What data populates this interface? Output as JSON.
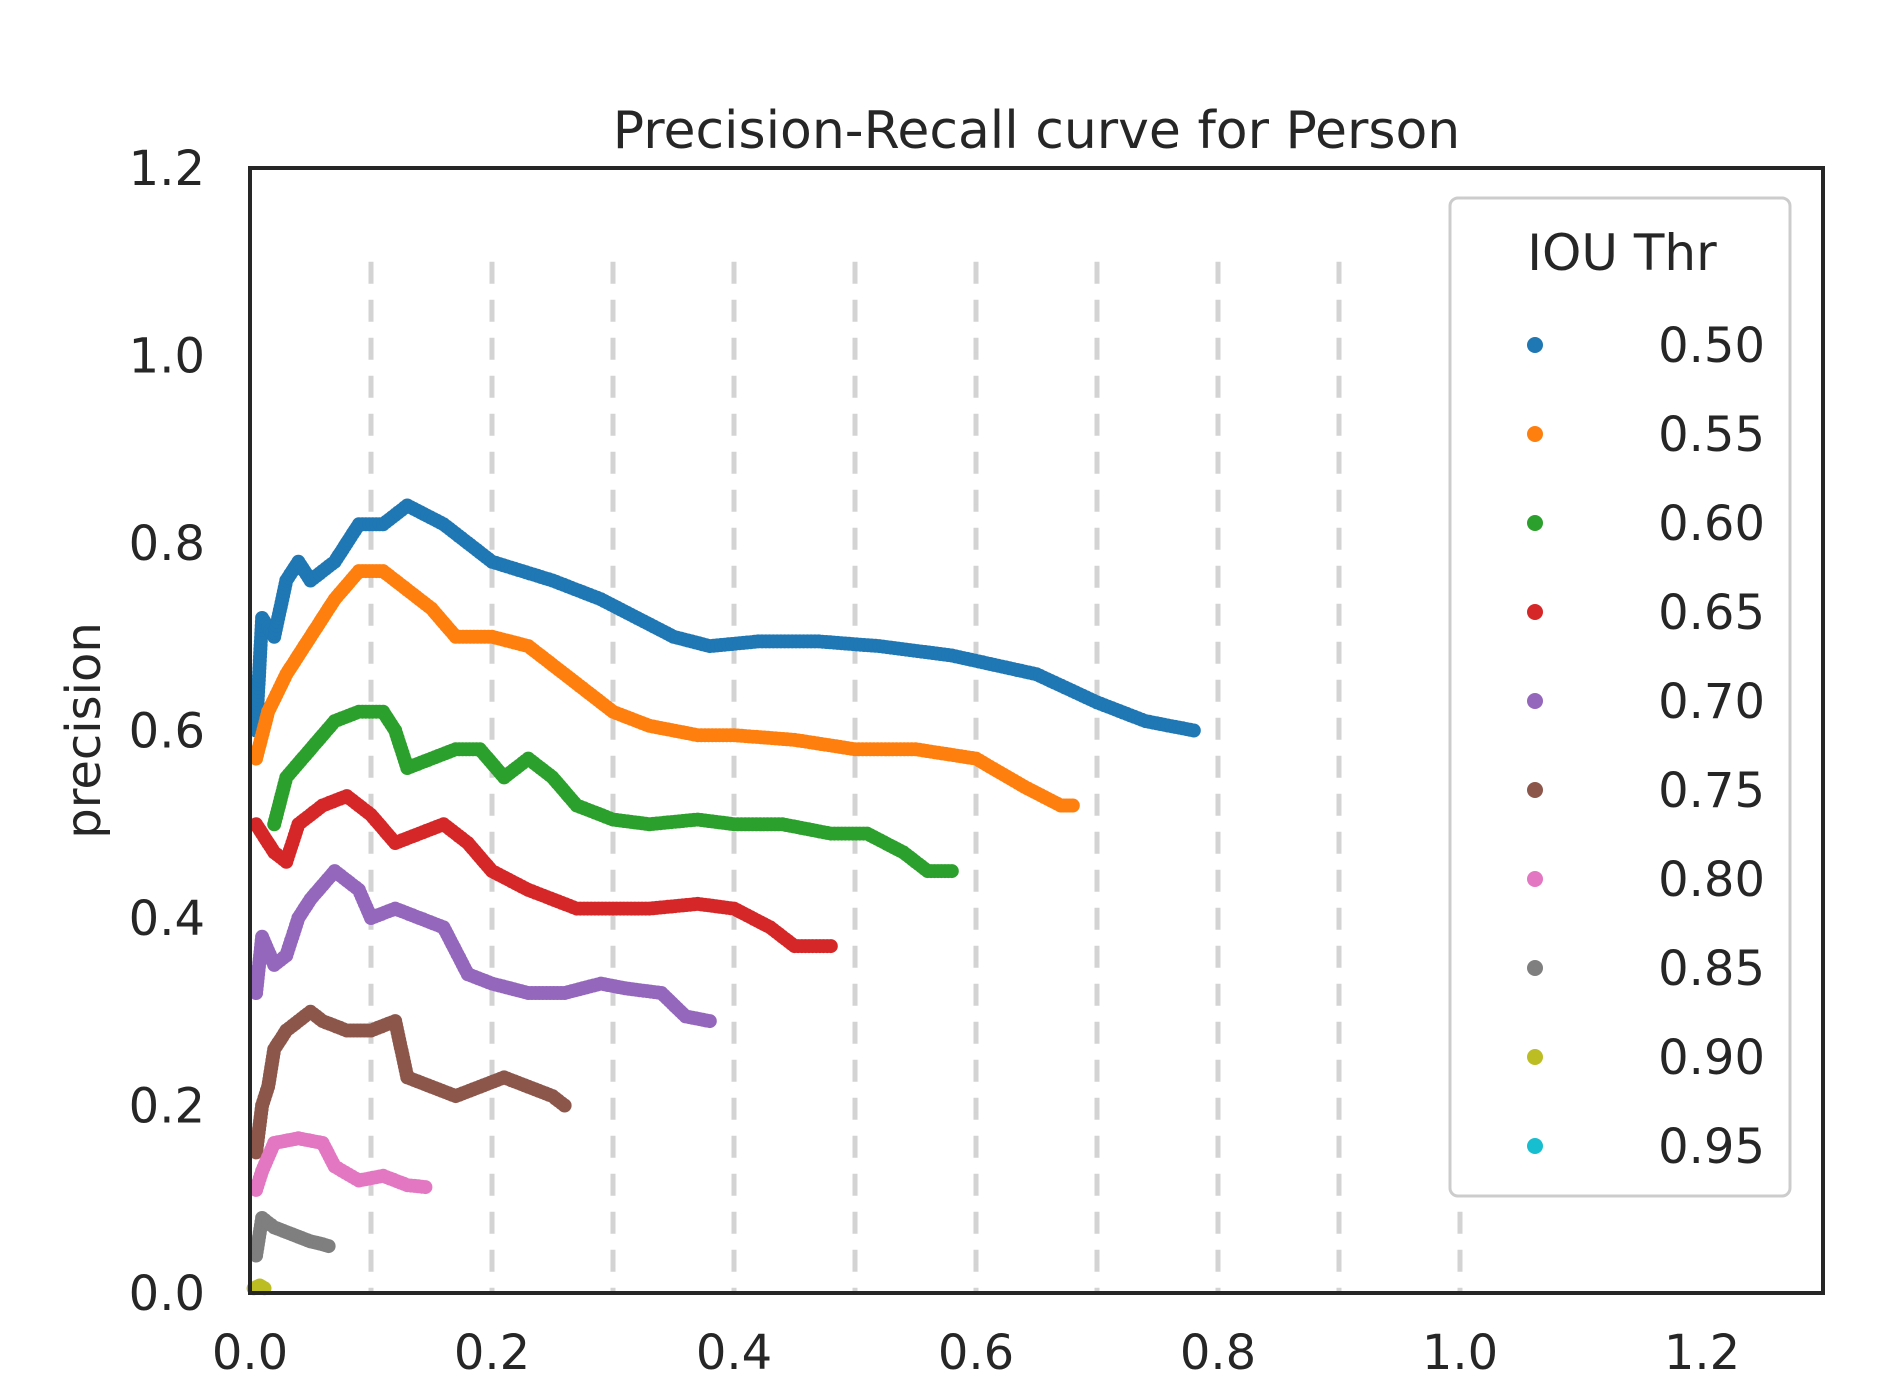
{
  "chart_data": {
    "type": "scatter",
    "title": "Precision-Recall curve for Person",
    "xlabel": "",
    "ylabel": "precision",
    "xlim": [
      0.0,
      1.3
    ],
    "ylim": [
      0.0,
      1.2
    ],
    "x_ticks": [
      0.0,
      0.2,
      0.4,
      0.6,
      0.8,
      1.0,
      1.2
    ],
    "x_tick_labels": [
      "0.0",
      "0.2",
      "0.4",
      "0.6",
      "0.8",
      "1.0",
      "1.2"
    ],
    "y_ticks": [
      0.0,
      0.2,
      0.4,
      0.6,
      0.8,
      1.0,
      1.2
    ],
    "y_tick_labels": [
      "0.0",
      "0.2",
      "0.4",
      "0.6",
      "0.8",
      "1.0",
      "1.2"
    ],
    "vertical_grid_x": [
      0.1,
      0.2,
      0.3,
      0.4,
      0.5,
      0.6,
      0.7,
      0.8,
      0.9,
      1.0
    ],
    "vertical_grid_ylim": [
      0.0,
      1.1
    ],
    "legend": {
      "title": "IOU Thr",
      "position": "upper right"
    },
    "series": [
      {
        "name": "0.50",
        "color": "#1f77b4",
        "points": [
          [
            0.005,
            0.6
          ],
          [
            0.01,
            0.72
          ],
          [
            0.02,
            0.7
          ],
          [
            0.03,
            0.76
          ],
          [
            0.04,
            0.78
          ],
          [
            0.05,
            0.76
          ],
          [
            0.07,
            0.78
          ],
          [
            0.09,
            0.82
          ],
          [
            0.11,
            0.82
          ],
          [
            0.13,
            0.84
          ],
          [
            0.16,
            0.82
          ],
          [
            0.2,
            0.78
          ],
          [
            0.25,
            0.76
          ],
          [
            0.29,
            0.74
          ],
          [
            0.32,
            0.72
          ],
          [
            0.35,
            0.7
          ],
          [
            0.38,
            0.69
          ],
          [
            0.42,
            0.695
          ],
          [
            0.47,
            0.695
          ],
          [
            0.52,
            0.69
          ],
          [
            0.58,
            0.68
          ],
          [
            0.65,
            0.66
          ],
          [
            0.7,
            0.63
          ],
          [
            0.74,
            0.61
          ],
          [
            0.78,
            0.6
          ]
        ]
      },
      {
        "name": "0.55",
        "color": "#ff7f0e",
        "points": [
          [
            0.005,
            0.57
          ],
          [
            0.015,
            0.62
          ],
          [
            0.03,
            0.66
          ],
          [
            0.05,
            0.7
          ],
          [
            0.07,
            0.74
          ],
          [
            0.09,
            0.77
          ],
          [
            0.11,
            0.77
          ],
          [
            0.13,
            0.75
          ],
          [
            0.15,
            0.73
          ],
          [
            0.17,
            0.7
          ],
          [
            0.2,
            0.7
          ],
          [
            0.23,
            0.69
          ],
          [
            0.27,
            0.65
          ],
          [
            0.3,
            0.62
          ],
          [
            0.33,
            0.605
          ],
          [
            0.37,
            0.595
          ],
          [
            0.4,
            0.595
          ],
          [
            0.45,
            0.59
          ],
          [
            0.5,
            0.58
          ],
          [
            0.55,
            0.58
          ],
          [
            0.6,
            0.57
          ],
          [
            0.64,
            0.54
          ],
          [
            0.67,
            0.52
          ],
          [
            0.68,
            0.52
          ]
        ]
      },
      {
        "name": "0.60",
        "color": "#2ca02c",
        "points": [
          [
            0.02,
            0.5
          ],
          [
            0.03,
            0.55
          ],
          [
            0.05,
            0.58
          ],
          [
            0.07,
            0.61
          ],
          [
            0.09,
            0.62
          ],
          [
            0.11,
            0.62
          ],
          [
            0.12,
            0.6
          ],
          [
            0.13,
            0.56
          ],
          [
            0.15,
            0.57
          ],
          [
            0.17,
            0.58
          ],
          [
            0.19,
            0.58
          ],
          [
            0.21,
            0.55
          ],
          [
            0.23,
            0.57
          ],
          [
            0.25,
            0.55
          ],
          [
            0.27,
            0.52
          ],
          [
            0.3,
            0.505
          ],
          [
            0.33,
            0.5
          ],
          [
            0.37,
            0.505
          ],
          [
            0.4,
            0.5
          ],
          [
            0.44,
            0.5
          ],
          [
            0.48,
            0.49
          ],
          [
            0.51,
            0.49
          ],
          [
            0.54,
            0.47
          ],
          [
            0.56,
            0.45
          ],
          [
            0.58,
            0.45
          ]
        ]
      },
      {
        "name": "0.65",
        "color": "#d62728",
        "points": [
          [
            0.005,
            0.5
          ],
          [
            0.02,
            0.47
          ],
          [
            0.03,
            0.46
          ],
          [
            0.04,
            0.5
          ],
          [
            0.06,
            0.52
          ],
          [
            0.08,
            0.53
          ],
          [
            0.1,
            0.51
          ],
          [
            0.12,
            0.48
          ],
          [
            0.14,
            0.49
          ],
          [
            0.16,
            0.5
          ],
          [
            0.18,
            0.48
          ],
          [
            0.2,
            0.45
          ],
          [
            0.23,
            0.43
          ],
          [
            0.27,
            0.41
          ],
          [
            0.3,
            0.41
          ],
          [
            0.33,
            0.41
          ],
          [
            0.37,
            0.415
          ],
          [
            0.4,
            0.41
          ],
          [
            0.43,
            0.39
          ],
          [
            0.45,
            0.37
          ],
          [
            0.48,
            0.37
          ]
        ]
      },
      {
        "name": "0.70",
        "color": "#9467bd",
        "points": [
          [
            0.005,
            0.32
          ],
          [
            0.01,
            0.38
          ],
          [
            0.02,
            0.35
          ],
          [
            0.03,
            0.36
          ],
          [
            0.04,
            0.4
          ],
          [
            0.05,
            0.42
          ],
          [
            0.07,
            0.45
          ],
          [
            0.09,
            0.43
          ],
          [
            0.1,
            0.4
          ],
          [
            0.12,
            0.41
          ],
          [
            0.14,
            0.4
          ],
          [
            0.16,
            0.39
          ],
          [
            0.18,
            0.34
          ],
          [
            0.2,
            0.33
          ],
          [
            0.23,
            0.32
          ],
          [
            0.26,
            0.32
          ],
          [
            0.29,
            0.33
          ],
          [
            0.31,
            0.325
          ],
          [
            0.34,
            0.32
          ],
          [
            0.36,
            0.295
          ],
          [
            0.38,
            0.29
          ]
        ]
      },
      {
        "name": "0.75",
        "color": "#8c564b",
        "points": [
          [
            0.005,
            0.15
          ],
          [
            0.01,
            0.2
          ],
          [
            0.015,
            0.22
          ],
          [
            0.02,
            0.26
          ],
          [
            0.03,
            0.28
          ],
          [
            0.05,
            0.3
          ],
          [
            0.06,
            0.29
          ],
          [
            0.08,
            0.28
          ],
          [
            0.1,
            0.28
          ],
          [
            0.12,
            0.29
          ],
          [
            0.13,
            0.23
          ],
          [
            0.15,
            0.22
          ],
          [
            0.17,
            0.21
          ],
          [
            0.19,
            0.22
          ],
          [
            0.21,
            0.23
          ],
          [
            0.23,
            0.22
          ],
          [
            0.25,
            0.21
          ],
          [
            0.26,
            0.2
          ]
        ]
      },
      {
        "name": "0.80",
        "color": "#e377c2",
        "points": [
          [
            0.005,
            0.11
          ],
          [
            0.01,
            0.13
          ],
          [
            0.02,
            0.16
          ],
          [
            0.04,
            0.165
          ],
          [
            0.06,
            0.16
          ],
          [
            0.07,
            0.135
          ],
          [
            0.09,
            0.12
          ],
          [
            0.11,
            0.125
          ],
          [
            0.13,
            0.115
          ],
          [
            0.145,
            0.113
          ]
        ]
      },
      {
        "name": "0.85",
        "color": "#7f7f7f",
        "points": [
          [
            0.005,
            0.04
          ],
          [
            0.01,
            0.08
          ],
          [
            0.02,
            0.07
          ],
          [
            0.03,
            0.065
          ],
          [
            0.04,
            0.06
          ],
          [
            0.05,
            0.055
          ],
          [
            0.06,
            0.052
          ],
          [
            0.065,
            0.05
          ]
        ]
      },
      {
        "name": "0.90",
        "color": "#bcbd22",
        "points": [
          [
            0.003,
            0.005
          ],
          [
            0.008,
            0.008
          ],
          [
            0.012,
            0.005
          ]
        ]
      },
      {
        "name": "0.95",
        "color": "#17becf",
        "points": []
      }
    ]
  }
}
